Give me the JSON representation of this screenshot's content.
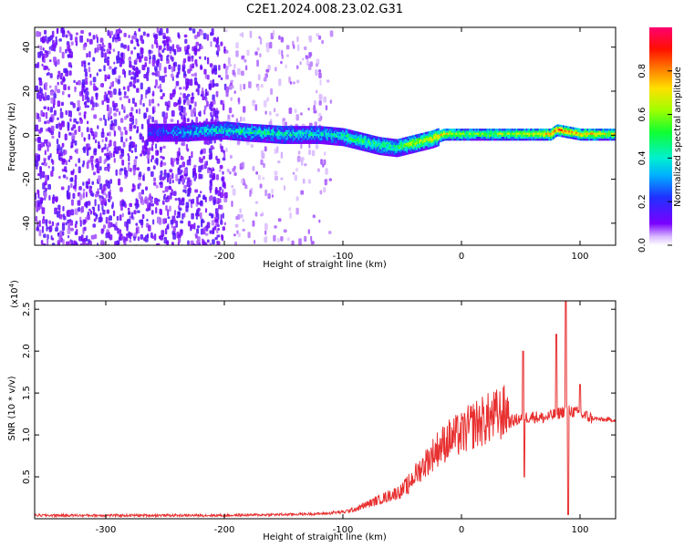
{
  "chart_data": [
    {
      "type": "heatmap",
      "title": "C2E1.2024.008.23.02.G31",
      "xlabel": "Height of straight line (km)",
      "ylabel": "Frequency (Hz)",
      "xlim": [
        -360,
        130
      ],
      "ylim": [
        -50,
        49
      ],
      "xticks": [
        "-300",
        "-200",
        "-100",
        "0",
        "100"
      ],
      "xtick_values": [
        -300,
        -200,
        -100,
        0,
        100
      ],
      "yticks": [
        "-40",
        "-20",
        "0",
        "20",
        "40"
      ],
      "ytick_values": [
        -40,
        -20,
        0,
        20,
        40
      ],
      "colorbar": {
        "label": "Normalized spectral amplitude",
        "range": [
          0,
          1
        ],
        "ticks": [
          "0.0",
          "0.2",
          "0.4",
          "0.6",
          "0.8"
        ],
        "tick_values": [
          0.0,
          0.2,
          0.4,
          0.6,
          0.8
        ],
        "colormap": "rainbow (purple → blue → cyan → green → yellow → red → pink)"
      },
      "ridge": {
        "x": [
          -265,
          -240,
          -200,
          -180,
          -150,
          -120,
          -100,
          -85,
          -70,
          -55,
          -40,
          -25,
          -15,
          0,
          25,
          50,
          75,
          80,
          100,
          130
        ],
        "freq": [
          2,
          2,
          3,
          2,
          1,
          1,
          0,
          -2,
          -4,
          -5,
          -3,
          -1,
          1,
          1,
          1,
          1,
          1,
          3,
          1,
          1
        ],
        "amplitude": [
          0.15,
          0.3,
          0.4,
          0.45,
          0.4,
          0.4,
          0.45,
          0.5,
          0.5,
          0.5,
          0.65,
          0.7,
          0.75,
          0.6,
          0.6,
          0.65,
          0.8,
          0.85,
          0.75,
          0.7
        ]
      },
      "grid": false
    },
    {
      "type": "line",
      "xlabel": "Height of straight line (km)",
      "ylabel": "SNR (10 * v/v)",
      "y_scale_label": "(x10",
      "y_scale_exponent": "4",
      "xlim": [
        -360,
        130
      ],
      "ylim": [
        0,
        2.6
      ],
      "xticks": [
        "-300",
        "-200",
        "-100",
        "0",
        "100"
      ],
      "xtick_values": [
        -300,
        -200,
        -100,
        0,
        100
      ],
      "yticks": [
        "0.5",
        "1.0",
        "1.5",
        "2.0",
        "2.5"
      ],
      "ytick_values": [
        0.5,
        1.0,
        1.5,
        2.0,
        2.5
      ],
      "series": [
        {
          "color": "#e83030",
          "x": [
            -360,
            -300,
            -250,
            -200,
            -150,
            -120,
            -100,
            -90,
            -80,
            -70,
            -60,
            -50,
            -40,
            -30,
            -20,
            -10,
            0,
            10,
            20,
            30,
            40,
            50,
            60,
            70,
            80,
            90,
            100,
            110,
            120,
            130
          ],
          "y": [
            0.04,
            0.04,
            0.04,
            0.04,
            0.05,
            0.06,
            0.07,
            0.1,
            0.15,
            0.2,
            0.25,
            0.3,
            0.45,
            0.6,
            0.75,
            0.85,
            0.9,
            1.0,
            1.05,
            1.1,
            1.15,
            1.2,
            1.22,
            1.2,
            1.25,
            1.3,
            1.25,
            1.2,
            1.18,
            1.18
          ]
        }
      ],
      "spikes": [
        {
          "x": -45,
          "y": 0.3
        },
        {
          "x": 52,
          "y": 2.0
        },
        {
          "x": 53,
          "y": 0.5
        },
        {
          "x": 80,
          "y": 2.2
        },
        {
          "x": 88,
          "y": 2.6
        },
        {
          "x": 90,
          "y": 0.05
        },
        {
          "x": 100,
          "y": 1.6
        }
      ],
      "grid": false
    }
  ]
}
